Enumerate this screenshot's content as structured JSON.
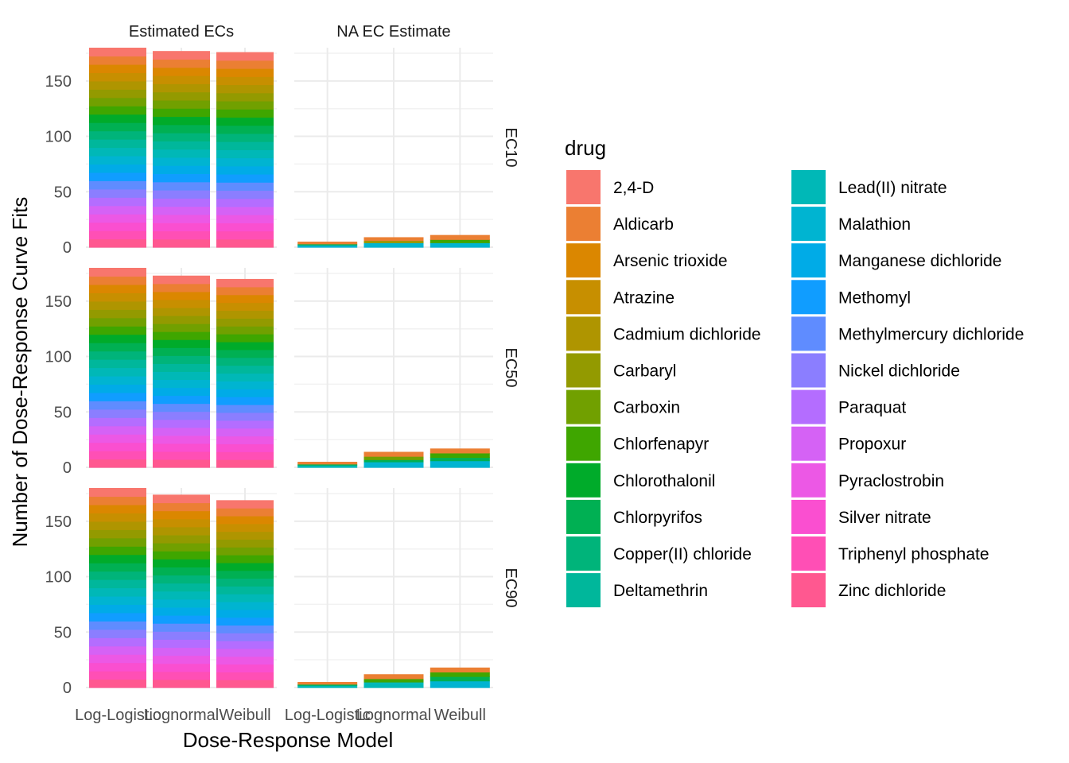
{
  "chart_data": {
    "type": "bar",
    "stacked": true,
    "xlabel": "Dose-Response Model",
    "ylabel": "Number of Dose-Response Curve Fits",
    "ylim": [
      0,
      180
    ],
    "yticks": [
      0,
      50,
      100,
      150
    ],
    "categories": [
      "Log-Logistic",
      "Lognormal",
      "Weibull"
    ],
    "columns": [
      "Estimated ECs",
      "NA EC Estimate"
    ],
    "rows": [
      "EC10",
      "EC50",
      "EC90"
    ],
    "legend": {
      "title": "drug",
      "position": "right",
      "items": [
        {
          "name": "2,4-D",
          "color": "#F8766D"
        },
        {
          "name": "Aldicarb",
          "color": "#EB7F33"
        },
        {
          "name": "Arsenic trioxide",
          "color": "#DB8700"
        },
        {
          "name": "Atrazine",
          "color": "#C78F00"
        },
        {
          "name": "Cadmium dichloride",
          "color": "#AF9500"
        },
        {
          "name": "Carbaryl",
          "color": "#939A00"
        },
        {
          "name": "Carboxin",
          "color": "#71A000"
        },
        {
          "name": "Chlorfenapyr",
          "color": "#3FA600"
        },
        {
          "name": "Chlorothalonil",
          "color": "#00AB2A"
        },
        {
          "name": "Chlorpyrifos",
          "color": "#00B053"
        },
        {
          "name": "Copper(II) chloride",
          "color": "#00B47A"
        },
        {
          "name": "Deltamethrin",
          "color": "#00B79B"
        },
        {
          "name": "Lead(II) nitrate",
          "color": "#00B8B7"
        },
        {
          "name": "Malathion",
          "color": "#00B4D1"
        },
        {
          "name": "Manganese dichloride",
          "color": "#00ABE7"
        },
        {
          "name": "Methomyl",
          "color": "#109DFF"
        },
        {
          "name": "Methylmercury dichloride",
          "color": "#5F8CFF"
        },
        {
          "name": "Nickel dichloride",
          "color": "#8B7EFF"
        },
        {
          "name": "Paraquat",
          "color": "#B46DFF"
        },
        {
          "name": "Propoxur",
          "color": "#D562F5"
        },
        {
          "name": "Pyraclostrobin",
          "color": "#EC58E5"
        },
        {
          "name": "Silver nitrate",
          "color": "#FA4FD0"
        },
        {
          "name": "Triphenyl phosphate",
          "color": "#FF4FB5"
        },
        {
          "name": "Zinc dichloride",
          "color": "#FF5890"
        }
      ]
    },
    "panels": [
      {
        "row": "EC10",
        "column": "Estimated ECs",
        "totals": [
          180,
          177,
          176
        ]
      },
      {
        "row": "EC10",
        "column": "NA EC Estimate",
        "totals": [
          5,
          9,
          11
        ],
        "segments": [
          [
            {
              "drug": "Aldicarb",
              "value": 2
            },
            {
              "drug": "Chlorpyrifos",
              "value": 1
            },
            {
              "drug": "Malathion",
              "value": 2
            }
          ],
          [
            {
              "drug": "Aldicarb",
              "value": 3
            },
            {
              "drug": "Carbaryl",
              "value": 2
            },
            {
              "drug": "Malathion",
              "value": 4
            }
          ],
          [
            {
              "drug": "Aldicarb",
              "value": 4
            },
            {
              "drug": "Chlorfenapyr",
              "value": 3
            },
            {
              "drug": "Malathion",
              "value": 4
            }
          ]
        ]
      },
      {
        "row": "EC50",
        "column": "Estimated ECs",
        "totals": [
          180,
          173,
          170
        ]
      },
      {
        "row": "EC50",
        "column": "NA EC Estimate",
        "totals": [
          5,
          14,
          17
        ],
        "segments": [
          [
            {
              "drug": "Aldicarb",
              "value": 2
            },
            {
              "drug": "Chlorpyrifos",
              "value": 1
            },
            {
              "drug": "Lead(II) nitrate",
              "value": 2
            }
          ],
          [
            {
              "drug": "Aldicarb",
              "value": 4
            },
            {
              "drug": "Carboxin",
              "value": 3
            },
            {
              "drug": "Chlorpyrifos",
              "value": 2
            },
            {
              "drug": "Malathion",
              "value": 5
            }
          ],
          [
            {
              "drug": "Aldicarb",
              "value": 4
            },
            {
              "drug": "Chlorfenapyr",
              "value": 4
            },
            {
              "drug": "Chlorpyrifos",
              "value": 3
            },
            {
              "drug": "Malathion",
              "value": 6
            }
          ]
        ]
      },
      {
        "row": "EC90",
        "column": "Estimated ECs",
        "totals": [
          180,
          174,
          169
        ]
      },
      {
        "row": "EC90",
        "column": "NA EC Estimate",
        "totals": [
          5,
          12,
          18
        ],
        "segments": [
          [
            {
              "drug": "Aldicarb",
              "value": 2
            },
            {
              "drug": "Chlorpyrifos",
              "value": 1
            },
            {
              "drug": "Lead(II) nitrate",
              "value": 2
            }
          ],
          [
            {
              "drug": "Aldicarb",
              "value": 4
            },
            {
              "drug": "Chlorfenapyr",
              "value": 3
            },
            {
              "drug": "Lead(II) nitrate",
              "value": 5
            }
          ],
          [
            {
              "drug": "Aldicarb",
              "value": 4
            },
            {
              "drug": "Chlorfenapyr",
              "value": 4
            },
            {
              "drug": "Chlorpyrifos",
              "value": 4
            },
            {
              "drug": "Malathion",
              "value": 6
            }
          ]
        ]
      }
    ]
  }
}
